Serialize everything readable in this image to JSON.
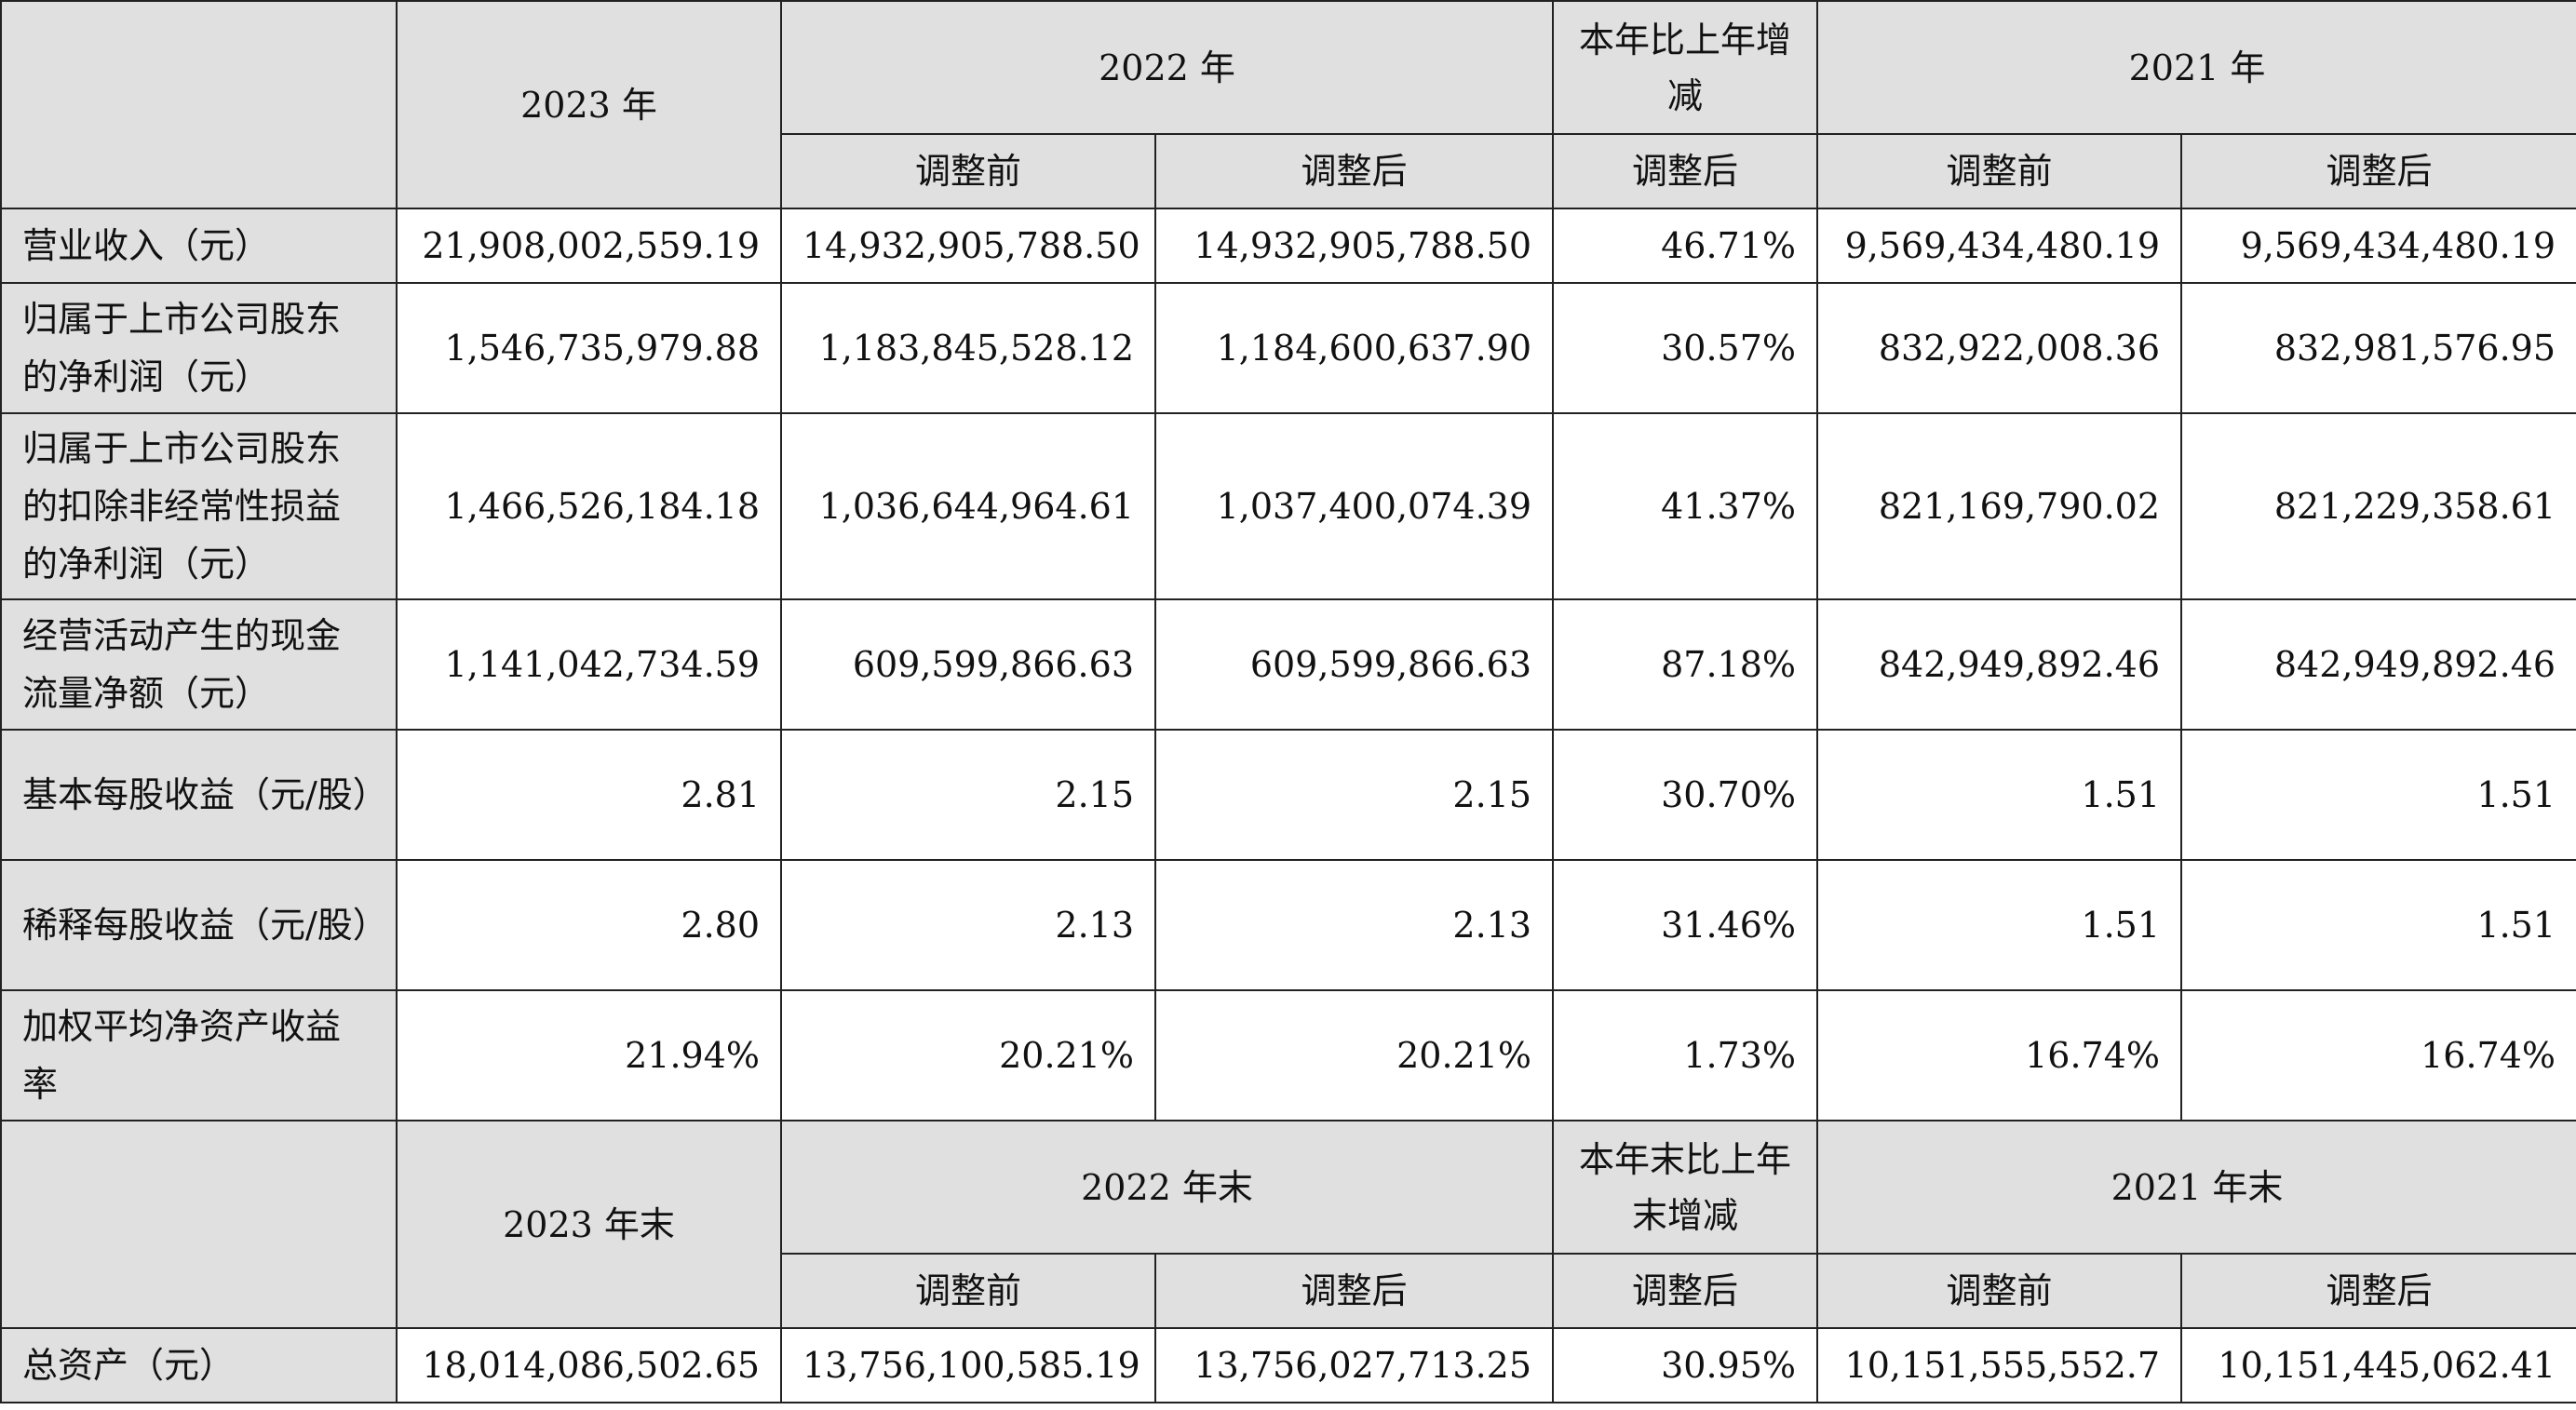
{
  "header1": {
    "y2023": "2023 年",
    "y2022": "2022 年",
    "change": "本年比上年增减",
    "y2021": "2021 年",
    "before": "调整前",
    "after": "调整后",
    "change_after": "调整后",
    "before2": "调整前",
    "after2": "调整后"
  },
  "rows1": [
    {
      "label": "营业收入（元）",
      "v2023": "21,908,002,559.19",
      "v2022_before": "14,932,905,788.50",
      "v2022_after": "14,932,905,788.50",
      "change": "46.71%",
      "v2021_before": "9,569,434,480.19",
      "v2021_after": "9,569,434,480.19"
    },
    {
      "label": "归属于上市公司股东的净利润（元）",
      "v2023": "1,546,735,979.88",
      "v2022_before": "1,183,845,528.12",
      "v2022_after": "1,184,600,637.90",
      "change": "30.57%",
      "v2021_before": "832,922,008.36",
      "v2021_after": "832,981,576.95"
    },
    {
      "label": "归属于上市公司股东的扣除非经常性损益的净利润（元）",
      "v2023": "1,466,526,184.18",
      "v2022_before": "1,036,644,964.61",
      "v2022_after": "1,037,400,074.39",
      "change": "41.37%",
      "v2021_before": "821,169,790.02",
      "v2021_after": "821,229,358.61"
    },
    {
      "label": "经营活动产生的现金流量净额（元）",
      "v2023": "1,141,042,734.59",
      "v2022_before": "609,599,866.63",
      "v2022_after": "609,599,866.63",
      "change": "87.18%",
      "v2021_before": "842,949,892.46",
      "v2021_after": "842,949,892.46"
    },
    {
      "label": "基本每股收益（元/股）",
      "v2023": "2.81",
      "v2022_before": "2.15",
      "v2022_after": "2.15",
      "change": "30.70%",
      "v2021_before": "1.51",
      "v2021_after": "1.51"
    },
    {
      "label": "稀释每股收益（元/股）",
      "v2023": "2.80",
      "v2022_before": "2.13",
      "v2022_after": "2.13",
      "change": "31.46%",
      "v2021_before": "1.51",
      "v2021_after": "1.51"
    },
    {
      "label": "加权平均净资产收益率",
      "v2023": "21.94%",
      "v2022_before": "20.21%",
      "v2022_after": "20.21%",
      "change": "1.73%",
      "v2021_before": "16.74%",
      "v2021_after": "16.74%"
    }
  ],
  "header2": {
    "y2023": "2023 年末",
    "y2022": "2022 年末",
    "change": "本年末比上年末增减",
    "y2021": "2021 年末",
    "before": "调整前",
    "after": "调整后",
    "change_after": "调整后",
    "before2": "调整前",
    "after2": "调整后"
  },
  "rows2": [
    {
      "label": "总资产（元）",
      "v2023": "18,014,086,502.65",
      "v2022_before": "13,756,100,585.19",
      "v2022_after": "13,756,027,713.25",
      "change": "30.95%",
      "v2021_before": "10,151,555,552.7",
      "v2021_after": "10,151,445,062.41"
    }
  ]
}
